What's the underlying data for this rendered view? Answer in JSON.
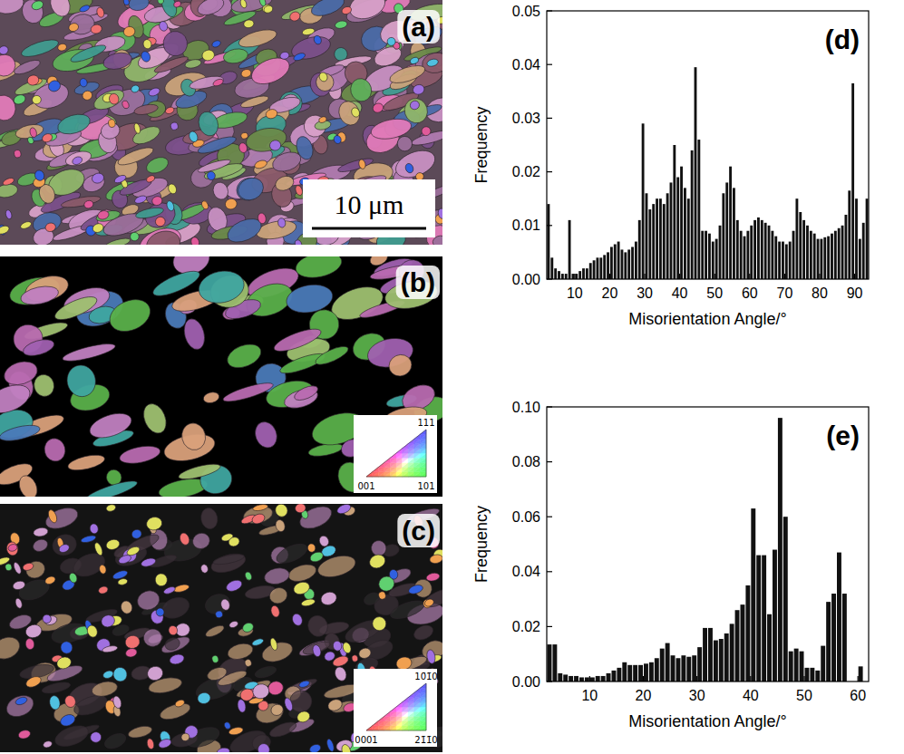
{
  "panels": [
    {
      "label": "(a)",
      "scale_bar": "10 μm"
    },
    {
      "label": "(b)",
      "legend": {
        "top": "111",
        "left": "001",
        "right": "101"
      }
    },
    {
      "label": "(c)",
      "legend": {
        "top": "10̄1̄0",
        "left": "0001",
        "right": "21̄1̄0"
      }
    }
  ],
  "chart_data": [
    {
      "type": "histogram",
      "title": "(d)",
      "x_label": "Misorientation Angle/°",
      "y_label": "Frequency",
      "color": "#111111",
      "bins": [
        2,
        3,
        4,
        5,
        6,
        7,
        8,
        9,
        10,
        11,
        12,
        13,
        14,
        15,
        16,
        17,
        18,
        19,
        20,
        21,
        22,
        23,
        24,
        25,
        26,
        27,
        28,
        29,
        30,
        31,
        32,
        33,
        34,
        35,
        36,
        37,
        38,
        39,
        40,
        41,
        42,
        43,
        44,
        45,
        46,
        47,
        48,
        49,
        50,
        51,
        52,
        53,
        54,
        55,
        56,
        57,
        58,
        59,
        60,
        61,
        62,
        63,
        64,
        65,
        66,
        67,
        68,
        69,
        70,
        71,
        72,
        73,
        74,
        75,
        76,
        77,
        78,
        79,
        80,
        81,
        82,
        83,
        84,
        85,
        86,
        87,
        88,
        89,
        90,
        91,
        92,
        93,
        94
      ],
      "values": [
        0.014,
        0.004,
        0.002,
        0.0015,
        0.001,
        0.001,
        0.011,
        0.001,
        0.001,
        0.0015,
        0.002,
        0.002,
        0.003,
        0.0035,
        0.004,
        0.004,
        0.0045,
        0.005,
        0.006,
        0.0065,
        0.007,
        0.0055,
        0.005,
        0.0055,
        0.006,
        0.007,
        0.011,
        0.029,
        0.016,
        0.013,
        0.014,
        0.015,
        0.015,
        0.014,
        0.016,
        0.018,
        0.025,
        0.019,
        0.021,
        0.017,
        0.015,
        0.024,
        0.0395,
        0.026,
        0.009,
        0.009,
        0.0085,
        0.007,
        0.0075,
        0.01,
        0.016,
        0.018,
        0.021,
        0.017,
        0.011,
        0.009,
        0.008,
        0.009,
        0.01,
        0.011,
        0.0115,
        0.011,
        0.0105,
        0.01,
        0.009,
        0.008,
        0.007,
        0.007,
        0.0065,
        0.007,
        0.009,
        0.015,
        0.0125,
        0.011,
        0.01,
        0.009,
        0.0085,
        0.0075,
        0.0075,
        0.0078,
        0.008,
        0.0085,
        0.009,
        0.0095,
        0.01,
        0.012,
        0.0165,
        0.0365,
        0.015,
        0.0075,
        0.0105,
        0.015
      ],
      "xlim": [
        2,
        94
      ],
      "xticks": [
        10,
        20,
        30,
        40,
        50,
        60,
        70,
        80,
        90
      ],
      "ylim": [
        0,
        0.05
      ],
      "yticks": [
        {
          "value": 0,
          "label": "0.00"
        },
        {
          "value": 0.01,
          "label": "0.01"
        },
        {
          "value": 0.02,
          "label": "0.02"
        },
        {
          "value": 0.03,
          "label": "0.03"
        },
        {
          "value": 0.04,
          "label": "0.04"
        },
        {
          "value": 0.05,
          "label": "0.05"
        }
      ]
    },
    {
      "type": "histogram",
      "title": "(e)",
      "x_label": "Misorientation Angle/°",
      "y_label": "Frequency",
      "color": "#111111",
      "bins": [
        2,
        3,
        4,
        5,
        6,
        7,
        8,
        9,
        10,
        11,
        12,
        13,
        14,
        15,
        16,
        17,
        18,
        19,
        20,
        21,
        22,
        23,
        24,
        25,
        26,
        27,
        28,
        29,
        30,
        31,
        32,
        33,
        34,
        35,
        36,
        37,
        38,
        39,
        40,
        41,
        42,
        43,
        44,
        45,
        46,
        47,
        48,
        49,
        50,
        51,
        52,
        53,
        54,
        55,
        56,
        57,
        58,
        59,
        60,
        61
      ],
      "values": [
        0.0135,
        0.0135,
        0.003,
        0.0025,
        0.002,
        0.002,
        0.0015,
        0.0015,
        0.0015,
        0.002,
        0.002,
        0.003,
        0.004,
        0.005,
        0.007,
        0.006,
        0.006,
        0.006,
        0.0065,
        0.007,
        0.0085,
        0.012,
        0.014,
        0.0095,
        0.0085,
        0.0095,
        0.009,
        0.0095,
        0.0125,
        0.0195,
        0.0195,
        0.015,
        0.0155,
        0.0175,
        0.021,
        0.026,
        0.028,
        0.035,
        0.063,
        0.046,
        0.046,
        0.0245,
        0.048,
        0.096,
        0.06,
        0.011,
        0.012,
        0.011,
        0.005,
        0.005,
        0.004,
        0.013,
        0.029,
        0.032,
        0.047,
        0.032,
        0,
        0,
        0.0055
      ],
      "xlim": [
        2,
        62
      ],
      "xticks": [
        10,
        20,
        30,
        40,
        50,
        60
      ],
      "ylim": [
        0,
        0.1
      ],
      "yticks": [
        {
          "value": 0,
          "label": "0.00"
        },
        {
          "value": 0.02,
          "label": "0.02"
        },
        {
          "value": 0.04,
          "label": "0.04"
        },
        {
          "value": 0.06,
          "label": "0.06"
        },
        {
          "value": 0.08,
          "label": "0.08"
        },
        {
          "value": 0.1,
          "label": "0.10"
        }
      ]
    }
  ]
}
